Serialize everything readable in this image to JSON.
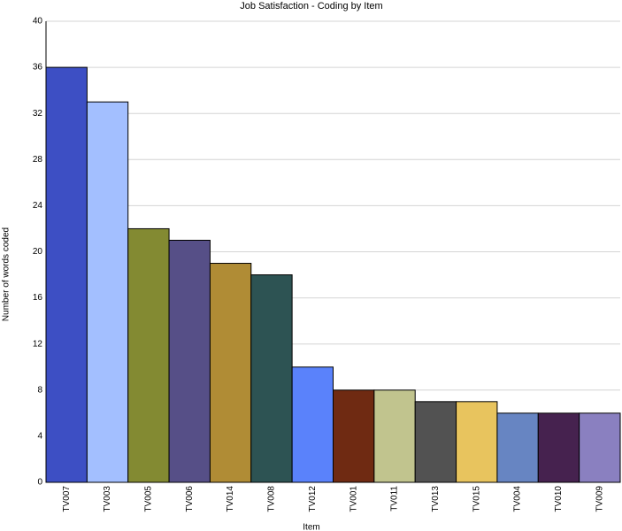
{
  "chart_data": {
    "type": "bar",
    "title": "Job Satisfaction - Coding by Item",
    "x_label": "Item",
    "y_label": "Number of words coded",
    "categories": [
      "TV007",
      "TV003",
      "TV005",
      "TV006",
      "TV014",
      "TV008",
      "TV012",
      "TV001",
      "TV011",
      "TV013",
      "TV015",
      "TV004",
      "TV010",
      "TV009"
    ],
    "values": [
      36,
      33,
      22,
      21,
      19,
      18,
      10,
      8,
      8,
      7,
      7,
      6,
      6,
      6
    ],
    "colors": [
      "#3d4fc4",
      "#a3bfff",
      "#838a32",
      "#564f87",
      "#b08c35",
      "#2d5353",
      "#5a82fb",
      "#6f2a12",
      "#c1c48e",
      "#525252",
      "#e8c45e",
      "#6785c2",
      "#46224f",
      "#8a80c0"
    ],
    "ylim": [
      0,
      40
    ],
    "yticks": [
      0,
      4,
      8,
      12,
      16,
      20,
      24,
      28,
      32,
      36,
      40
    ],
    "grid": true
  }
}
